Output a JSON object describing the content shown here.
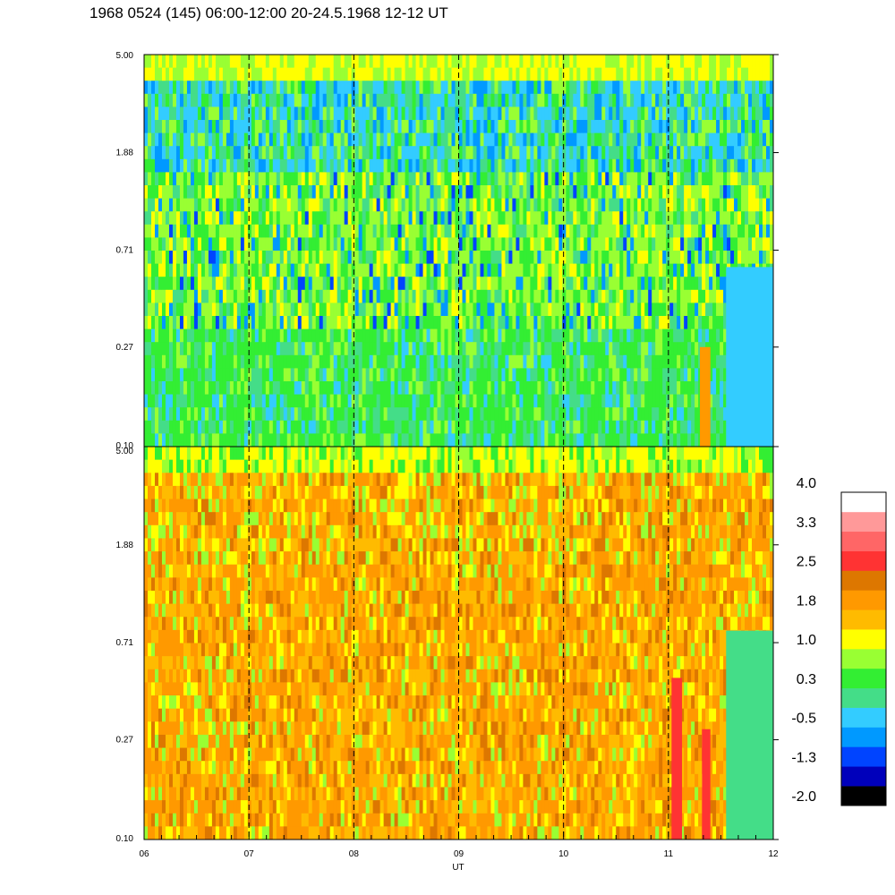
{
  "chart_data": {
    "type": "heatmap",
    "title": "1968 0524 (145) 06:00-12:00 20-24.5.1968  12-12 UT",
    "xlabel": "UT",
    "x_range": [
      6,
      12
    ],
    "x_ticks": [
      {
        "value": 6,
        "label": "06"
      },
      {
        "value": 7,
        "label": "07"
      },
      {
        "value": 8,
        "label": "08"
      },
      {
        "value": 9,
        "label": "09"
      },
      {
        "value": 10,
        "label": "10"
      },
      {
        "value": 11,
        "label": "11"
      },
      {
        "value": 12,
        "label": "12"
      }
    ],
    "y_scale": "log",
    "y_range": [
      0.1,
      5.0
    ],
    "y_ticks": [
      {
        "value": 0.1,
        "label": "0.10"
      },
      {
        "value": 0.27,
        "label": "0.27"
      },
      {
        "value": 0.71,
        "label": "0.71"
      },
      {
        "value": 1.88,
        "label": "1.88"
      },
      {
        "value": 5.0,
        "label": "5.00"
      }
    ],
    "vertical_dashed_lines_at": [
      7,
      8,
      9,
      10,
      11
    ],
    "panels": [
      {
        "position": "top",
        "dominant_colors": [
          "#33ee33",
          "#99ff33",
          "#ffff00",
          "#44dd88",
          "#33ccff",
          "#0099ff",
          "#0044ff",
          "#0000bb"
        ],
        "features": [
          {
            "x_range": [
              11.3,
              11.4
            ],
            "y_range": [
              0.1,
              0.27
            ],
            "color": "#ff9900"
          },
          {
            "x_range": [
              11.55,
              12.0
            ],
            "y_range": [
              0.1,
              0.6
            ],
            "color": "#33ccff"
          }
        ]
      },
      {
        "position": "bottom",
        "dominant_colors": [
          "#ff9900",
          "#ffbb00",
          "#ffff00",
          "#dd7700",
          "#99ff33",
          "#33ee33",
          "#44dd88"
        ],
        "features": [
          {
            "x_range": [
              11.03,
              11.13
            ],
            "y_range": [
              0.1,
              0.5
            ],
            "color": "#ff3333"
          },
          {
            "x_range": [
              11.32,
              11.4
            ],
            "y_range": [
              0.1,
              0.3
            ],
            "color": "#ff3333"
          },
          {
            "x_range": [
              11.55,
              12.0
            ],
            "y_range": [
              0.1,
              0.8
            ],
            "color": "#44dd88"
          }
        ]
      }
    ],
    "colorbar": {
      "levels": [
        "#000000",
        "#0000bb",
        "#0044ff",
        "#0099ff",
        "#33ccff",
        "#44dd88",
        "#33ee33",
        "#99ff33",
        "#ffff00",
        "#ffbb00",
        "#ff9900",
        "#dd7700",
        "#ff3333",
        "#ff6666",
        "#ff9999",
        "#ffffff"
      ],
      "tick_labels": [
        "4.0",
        "3.3",
        "2.5",
        "1.8",
        "1.0",
        "0.3",
        "-0.5",
        "-1.3",
        "-2.0"
      ],
      "range": [
        -2.0,
        4.0
      ]
    }
  }
}
